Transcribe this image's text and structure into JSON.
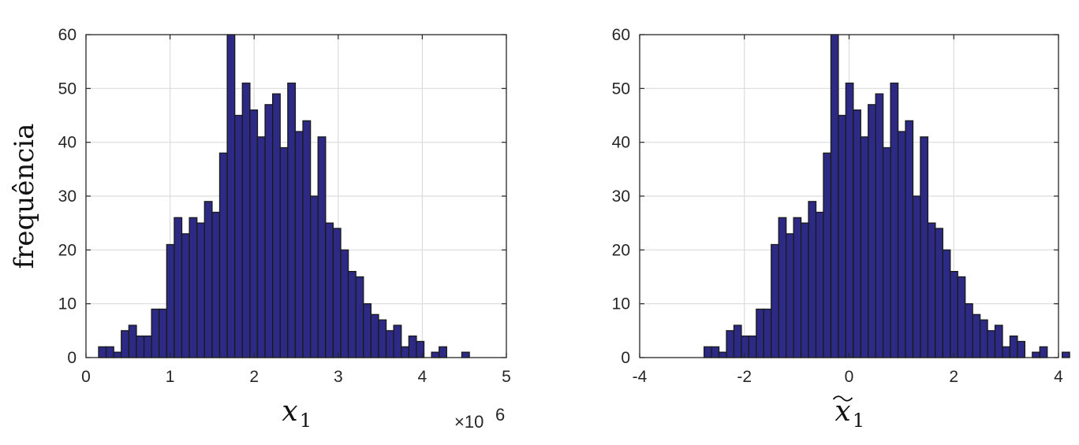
{
  "chart_data": [
    {
      "type": "bar",
      "subtype": "histogram",
      "ylabel": "frequência",
      "xlabel_symbol": "x",
      "xlabel_subscript": "1",
      "xlabel_tilde": false,
      "x_exponent_label": "×10",
      "x_exponent_power": "6",
      "xlim": [
        0,
        5
      ],
      "ylim": [
        0,
        60
      ],
      "xticks": [
        0,
        1,
        2,
        3,
        4,
        5
      ],
      "xtick_labels": [
        "0",
        "1",
        "2",
        "3",
        "4",
        "5"
      ],
      "yticks": [
        0,
        10,
        20,
        30,
        40,
        50,
        60
      ],
      "ytick_labels": [
        "0",
        "10",
        "20",
        "30",
        "40",
        "50",
        "60"
      ],
      "grid": true,
      "bar_color": "#2d2a85",
      "bin_start": 0.15,
      "bin_width": 0.09,
      "values": [
        2,
        2,
        1,
        5,
        6,
        4,
        4,
        9,
        9,
        21,
        26,
        23,
        26,
        25,
        29,
        27,
        38,
        60,
        45,
        51,
        46,
        41,
        47,
        49,
        39,
        51,
        42,
        44,
        30,
        41,
        25,
        24,
        20,
        16,
        15,
        10,
        8,
        7,
        5,
        6,
        2,
        4,
        3,
        0,
        1,
        2,
        0,
        0,
        1
      ]
    },
    {
      "type": "bar",
      "subtype": "histogram",
      "ylabel": "",
      "xlabel_symbol": "x",
      "xlabel_subscript": "1",
      "xlabel_tilde": true,
      "x_exponent_label": "",
      "x_exponent_power": "",
      "xlim": [
        -4,
        4
      ],
      "ylim": [
        0,
        60
      ],
      "xticks": [
        -4,
        -2,
        0,
        2,
        4
      ],
      "xtick_labels": [
        "-4",
        "-2",
        "0",
        "2",
        "4"
      ],
      "yticks": [
        0,
        10,
        20,
        30,
        40,
        50,
        60
      ],
      "ytick_labels": [
        "0",
        "10",
        "20",
        "30",
        "40",
        "50",
        "60"
      ],
      "grid": true,
      "bar_color": "#2d2a85",
      "bin_start": -2.77,
      "bin_width": 0.1425,
      "values": [
        2,
        2,
        1,
        5,
        6,
        4,
        4,
        9,
        9,
        21,
        26,
        23,
        26,
        25,
        29,
        27,
        38,
        60,
        45,
        51,
        46,
        41,
        47,
        49,
        39,
        51,
        42,
        44,
        30,
        41,
        25,
        24,
        20,
        16,
        15,
        10,
        8,
        7,
        5,
        6,
        2,
        4,
        3,
        0,
        1,
        2,
        0,
        0,
        1
      ]
    }
  ]
}
